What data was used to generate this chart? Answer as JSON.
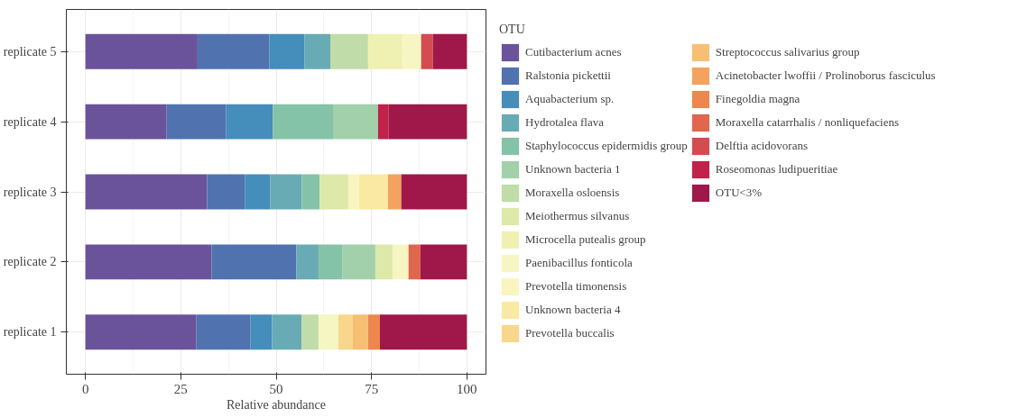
{
  "chart_data": {
    "type": "bar",
    "orientation": "horizontal",
    "stacked": true,
    "xlabel": "Relative abundance",
    "legend_title": "OTU",
    "legend": "right",
    "grid": true,
    "categories": [
      "replicate 5",
      "replicate 4",
      "replicate 3",
      "replicate 2",
      "replicate 1"
    ],
    "xlim": [
      -5,
      105
    ],
    "xticks": [
      0,
      25,
      50,
      75,
      100
    ],
    "series": [
      {
        "name": "Cutibacterium acnes",
        "color": "#6a539a",
        "values": [
          29.4,
          21.3,
          31.9,
          33.1,
          29.1
        ]
      },
      {
        "name": "Ralstonia pickettii",
        "color": "#5073b0",
        "values": [
          18.8,
          15.6,
          9.9,
          22.2,
          14.1
        ]
      },
      {
        "name": "Aquabacterium sp.",
        "color": "#458dba",
        "values": [
          9.2,
          12.2,
          6.6,
          null,
          5.7
        ]
      },
      {
        "name": "Hydrotalea flava",
        "color": "#68abb4",
        "values": [
          6.8,
          null,
          8.3,
          5.8,
          7.8
        ]
      },
      {
        "name": "Staphylococcus epidermidis group",
        "color": "#84c3a8",
        "values": [
          null,
          15.8,
          4.7,
          6.2,
          null
        ]
      },
      {
        "name": "Unknown bacteria 1",
        "color": "#a2d0aa",
        "values": [
          null,
          11.8,
          null,
          8.7,
          null
        ]
      },
      {
        "name": "Moraxella osloensis",
        "color": "#c0dca8",
        "values": [
          9.9,
          null,
          null,
          null,
          4.4
        ]
      },
      {
        "name": "Meiothermus silvanus",
        "color": "#dde9a8",
        "values": [
          null,
          null,
          7.5,
          4.5,
          null
        ]
      },
      {
        "name": "Microcella putealis group",
        "color": "#eff1b3",
        "values": [
          9.1,
          null,
          null,
          null,
          null
        ]
      },
      {
        "name": "Paenibacillus fonticola",
        "color": "#f6f6c2",
        "values": [
          4.8,
          null,
          null,
          4.2,
          5.2
        ]
      },
      {
        "name": "Prevotella timonensis",
        "color": "#faf4c0",
        "values": [
          null,
          null,
          2.8,
          null,
          null
        ]
      },
      {
        "name": "Unknown bacteria 4",
        "color": "#fae9a2",
        "values": [
          null,
          null,
          7.6,
          null,
          null
        ]
      },
      {
        "name": "Prevotella buccalis",
        "color": "#f8d68c",
        "values": [
          null,
          null,
          null,
          null,
          3.8
        ]
      },
      {
        "name": "Streptococcus salivarius group",
        "color": "#f7bf74",
        "values": [
          null,
          null,
          null,
          null,
          4.0
        ]
      },
      {
        "name": "Acinetobacter lwoffii / Prolinoborus fasciculus",
        "color": "#f2a35f",
        "values": [
          null,
          null,
          3.5,
          null,
          null
        ]
      },
      {
        "name": "Finegoldia magna",
        "color": "#ed874e",
        "values": [
          null,
          null,
          null,
          null,
          3.1
        ]
      },
      {
        "name": "Moraxella catarrhalis / nonliquefaciens",
        "color": "#e0664d",
        "values": [
          null,
          null,
          null,
          3.1,
          null
        ]
      },
      {
        "name": "Delftia acidovorans",
        "color": "#d44b51",
        "values": [
          3.1,
          null,
          null,
          null,
          null
        ]
      },
      {
        "name": "Roseomonas ludipueritiae",
        "color": "#c0224a",
        "values": [
          null,
          2.8,
          null,
          null,
          null
        ]
      },
      {
        "name": "OTU<3%",
        "color": "#a0184a",
        "values": [
          8.9,
          20.5,
          17.2,
          12.2,
          22.8
        ]
      }
    ]
  }
}
